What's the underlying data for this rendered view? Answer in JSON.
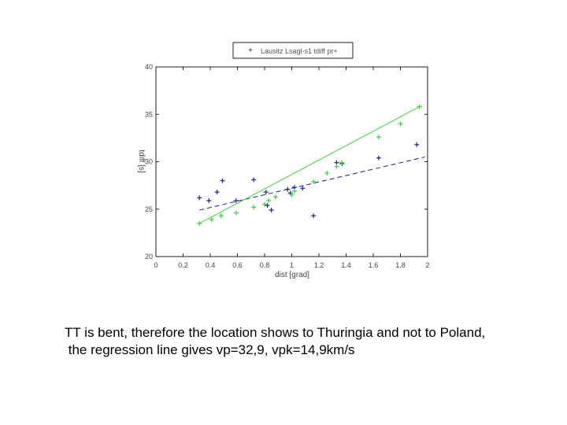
{
  "chart_data": {
    "type": "scatter",
    "xlabel": "dist [grad]",
    "ylabel": "tdiff [s]",
    "xlim": [
      0,
      2
    ],
    "ylim": [
      20,
      40
    ],
    "x_ticks": [
      "0",
      "0.2",
      "0.4",
      "0.6",
      "0.8",
      "1",
      "1.2",
      "1.4",
      "1.6",
      "1.8",
      "2"
    ],
    "y_ticks": [
      "20",
      "25",
      "30",
      "35",
      "40"
    ],
    "legend": {
      "label": "Lausitz Lsagl-s1 tdiff pr+",
      "position": "top-center"
    },
    "colors": {
      "blue": "#1a237e",
      "green": "#3ecf3e"
    },
    "series": [
      {
        "marker": "plus",
        "color": "blue",
        "x": [
          0.32,
          0.39,
          0.45,
          0.49,
          0.59,
          0.72,
          0.81,
          0.82,
          0.85,
          0.97,
          0.99,
          1.02,
          1.08,
          1.16,
          1.33,
          1.37,
          1.64,
          1.92
        ],
        "y": [
          26.2,
          25.9,
          26.8,
          28.0,
          25.9,
          28.1,
          26.8,
          25.4,
          24.9,
          27.1,
          26.7,
          27.3,
          27.2,
          24.3,
          29.9,
          29.8,
          30.4,
          31.8
        ]
      },
      {
        "marker": "plus",
        "color": "green",
        "x": [
          0.32,
          0.41,
          0.48,
          0.59,
          0.72,
          0.8,
          0.83,
          0.88,
          1.0,
          1.02,
          1.16,
          1.26,
          1.33,
          1.37,
          1.64,
          1.8,
          1.94
        ],
        "y": [
          23.5,
          23.9,
          24.3,
          24.6,
          25.2,
          25.5,
          25.9,
          26.3,
          26.5,
          26.9,
          27.9,
          28.8,
          29.5,
          29.9,
          32.6,
          34.0,
          35.8
        ]
      }
    ],
    "regression_lines": [
      {
        "color": "blue",
        "style": "dashed",
        "x": [
          0.32,
          1.98
        ],
        "y": [
          24.9,
          30.5
        ]
      },
      {
        "color": "green",
        "style": "solid",
        "x": [
          0.32,
          1.94
        ],
        "y": [
          23.5,
          35.8
        ]
      }
    ]
  },
  "caption": {
    "line1": "TT is bent, therefore the location shows to Thuringia and not to Poland,",
    "line2": " the regression line gives vp=32,9, vpk=14,9km/s"
  }
}
